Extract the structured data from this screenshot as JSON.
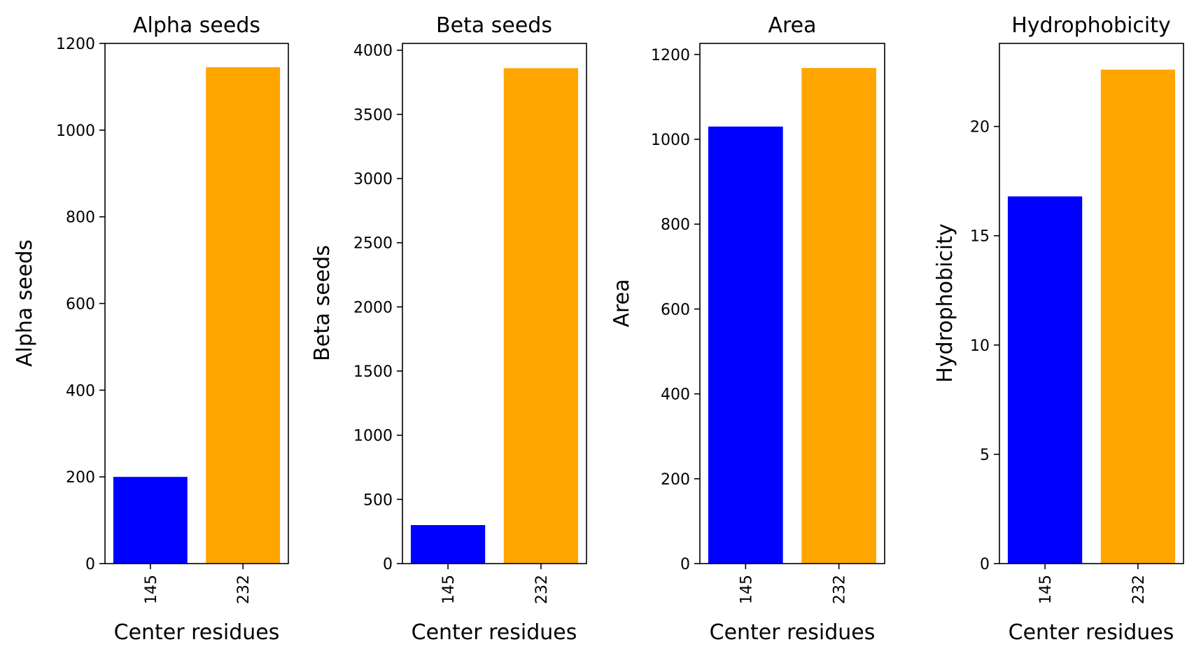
{
  "chart_data": [
    {
      "type": "bar",
      "title": "Alpha seeds",
      "xlabel": "Center residues",
      "ylabel": "Alpha seeds",
      "categories": [
        "145",
        "232"
      ],
      "values": [
        200,
        1145
      ],
      "colors": [
        "#0000ff",
        "#ffa500"
      ],
      "ylim": [
        0,
        1200
      ],
      "yticks": [
        0,
        200,
        400,
        600,
        800,
        1000,
        1200
      ],
      "ytick_labels": [
        "0",
        "200",
        "400",
        "600",
        "800",
        "1000",
        "1200"
      ],
      "grid": false
    },
    {
      "type": "bar",
      "title": "Beta seeds",
      "xlabel": "Center residues",
      "ylabel": "Beta seeds",
      "categories": [
        "145",
        "232"
      ],
      "values": [
        300,
        3860
      ],
      "colors": [
        "#0000ff",
        "#ffa500"
      ],
      "ylim": [
        0,
        4053
      ],
      "yticks": [
        0,
        500,
        1000,
        1500,
        2000,
        2500,
        3000,
        3500,
        4000
      ],
      "ytick_labels": [
        "0",
        "500",
        "1000",
        "1500",
        "2000",
        "2500",
        "3000",
        "3500",
        "4000"
      ],
      "grid": false
    },
    {
      "type": "bar",
      "title": "Area",
      "xlabel": "Center residues",
      "ylabel": "Area",
      "categories": [
        "145",
        "232"
      ],
      "values": [
        1030,
        1168
      ],
      "colors": [
        "#0000ff",
        "#ffa500"
      ],
      "ylim": [
        0,
        1226
      ],
      "yticks": [
        0,
        200,
        400,
        600,
        800,
        1000,
        1200
      ],
      "ytick_labels": [
        "0",
        "200",
        "400",
        "600",
        "800",
        "1000",
        "1200"
      ],
      "grid": false
    },
    {
      "type": "bar",
      "title": "Hydrophobicity",
      "xlabel": "Center residues",
      "ylabel": "Hydrophobicity",
      "categories": [
        "145",
        "232"
      ],
      "values": [
        16.8,
        22.6
      ],
      "colors": [
        "#0000ff",
        "#ffa500"
      ],
      "ylim": [
        0,
        23.8
      ],
      "yticks": [
        0,
        5,
        10,
        15,
        20
      ],
      "ytick_labels": [
        "0",
        "5",
        "10",
        "15",
        "20"
      ],
      "grid": false
    }
  ]
}
